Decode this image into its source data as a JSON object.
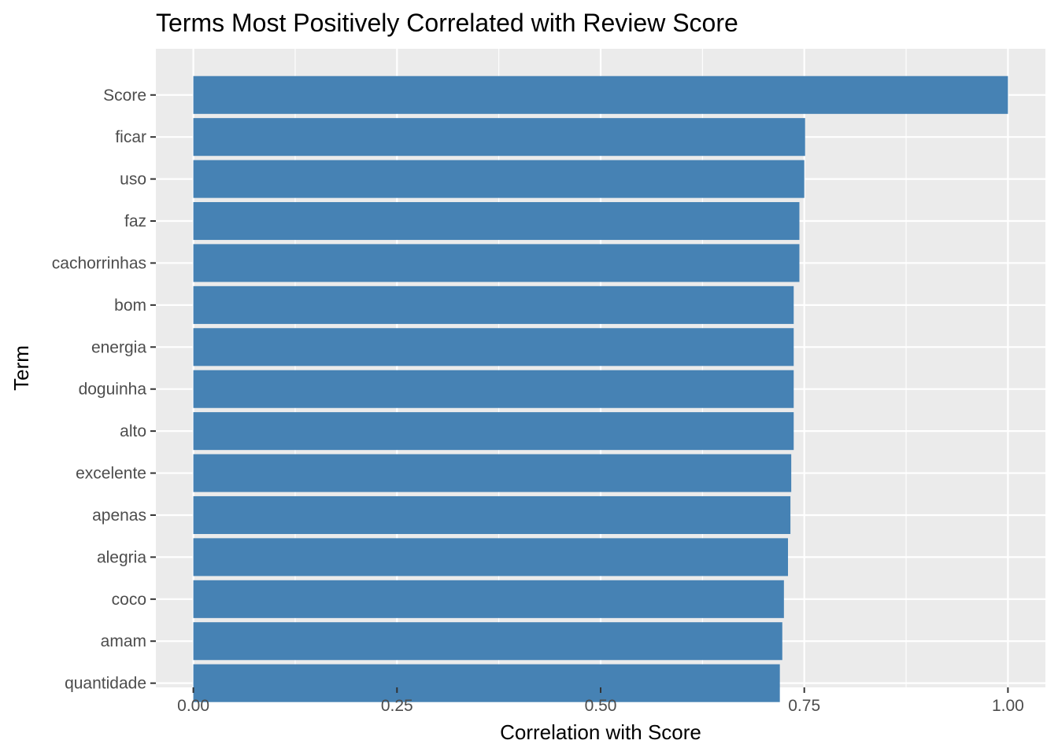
{
  "chart_data": {
    "type": "bar",
    "orientation": "horizontal",
    "title": "Terms Most Positively Correlated with Review Score",
    "xlabel": "Correlation with Score",
    "ylabel": "Term",
    "categories": [
      "Score",
      "ficar",
      "uso",
      "faz",
      "cachorrinhas",
      "bom",
      "energia",
      "doguinha",
      "alto",
      "excelente",
      "apenas",
      "alegria",
      "coco",
      "amam",
      "quantidade"
    ],
    "values": [
      1.0,
      0.751,
      0.75,
      0.744,
      0.744,
      0.737,
      0.737,
      0.737,
      0.737,
      0.734,
      0.733,
      0.73,
      0.725,
      0.723,
      0.72
    ],
    "xlim": [
      -0.046,
      1.046
    ],
    "xticks": [
      0.0,
      0.25,
      0.5,
      0.75,
      1.0
    ],
    "xtick_labels": [
      "0.00",
      "0.25",
      "0.50",
      "0.75",
      "1.00"
    ],
    "bar_color": "#4682B4",
    "panel_background": "#EBEBEB",
    "grid_color": "#FFFFFF",
    "grid": true,
    "legend": "none"
  }
}
